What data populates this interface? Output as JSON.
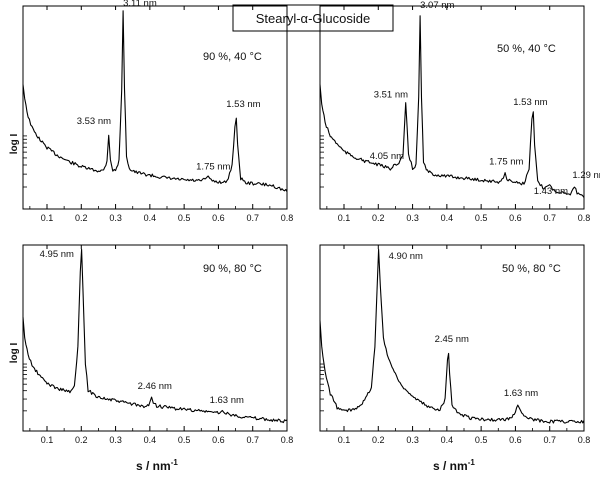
{
  "figure": {
    "title": "Stearyl-α-Glucoside",
    "xlabel_main": "s / nm",
    "xlabel_exp": "-1",
    "ylabel": "log I"
  },
  "chart_data": [
    {
      "type": "line",
      "panel": "top-left",
      "condition": "90 %, 40 °C",
      "xlabel": "",
      "ylabel": "log I",
      "xlim": [
        0.03,
        0.8
      ],
      "xticks": [
        0.1,
        0.2,
        0.3,
        0.4,
        0.5,
        0.6,
        0.7,
        0.8
      ],
      "y_scale": "log, unlabeled (relative intensity 0–1)",
      "ylim": [
        0,
        1
      ],
      "series": [
        {
          "x": [
            0.03,
            0.035,
            0.045,
            0.06,
            0.08,
            0.1,
            0.13,
            0.16,
            0.2,
            0.24,
            0.265,
            0.275,
            0.28,
            0.285,
            0.292,
            0.3,
            0.31,
            0.318,
            0.322,
            0.326,
            0.332,
            0.34,
            0.36,
            0.4,
            0.45,
            0.5,
            0.55,
            0.565,
            0.57,
            0.575,
            0.6,
            0.625,
            0.64,
            0.648,
            0.652,
            0.656,
            0.665,
            0.68,
            0.72,
            0.76,
            0.8
          ],
          "y": [
            0.62,
            0.55,
            0.45,
            0.38,
            0.33,
            0.29,
            0.25,
            0.22,
            0.19,
            0.17,
            0.17,
            0.22,
            0.36,
            0.23,
            0.17,
            0.17,
            0.22,
            0.6,
            1.0,
            0.6,
            0.25,
            0.18,
            0.16,
            0.145,
            0.13,
            0.12,
            0.115,
            0.13,
            0.145,
            0.12,
            0.11,
            0.11,
            0.2,
            0.4,
            0.44,
            0.3,
            0.13,
            0.105,
            0.1,
            0.09,
            0.06
          ]
        }
      ],
      "annotations": [
        {
          "text": "3.53 nm",
          "x": 0.28,
          "y": 0.36
        },
        {
          "text": "3.11 nm",
          "x": 0.322,
          "y": 1.0
        },
        {
          "text": "1.75 nm",
          "x": 0.57,
          "y": 0.145
        },
        {
          "text": "1.53 nm",
          "x": 0.652,
          "y": 0.44
        }
      ]
    },
    {
      "type": "line",
      "panel": "top-right",
      "condition": "50 %, 40 °C",
      "xlabel": "",
      "ylabel": "",
      "xlim": [
        0.03,
        0.8
      ],
      "xticks": [
        0.1,
        0.2,
        0.3,
        0.4,
        0.5,
        0.6,
        0.7,
        0.8
      ],
      "y_scale": "log, unlabeled (relative intensity 0–1)",
      "ylim": [
        0,
        1
      ],
      "series": [
        {
          "x": [
            0.03,
            0.035,
            0.045,
            0.06,
            0.08,
            0.1,
            0.13,
            0.16,
            0.2,
            0.235,
            0.245,
            0.26,
            0.272,
            0.28,
            0.288,
            0.3,
            0.31,
            0.318,
            0.322,
            0.326,
            0.332,
            0.34,
            0.36,
            0.4,
            0.45,
            0.5,
            0.55,
            0.565,
            0.57,
            0.575,
            0.6,
            0.625,
            0.64,
            0.648,
            0.652,
            0.656,
            0.665,
            0.68,
            0.695,
            0.7,
            0.705,
            0.72,
            0.76,
            0.768,
            0.772,
            0.78,
            0.8
          ],
          "y": [
            0.62,
            0.52,
            0.42,
            0.35,
            0.31,
            0.27,
            0.24,
            0.22,
            0.2,
            0.18,
            0.2,
            0.2,
            0.25,
            0.52,
            0.26,
            0.18,
            0.2,
            0.55,
            0.98,
            0.55,
            0.22,
            0.17,
            0.15,
            0.14,
            0.13,
            0.12,
            0.11,
            0.13,
            0.16,
            0.12,
            0.11,
            0.1,
            0.18,
            0.44,
            0.47,
            0.3,
            0.11,
            0.08,
            0.085,
            0.1,
            0.08,
            0.06,
            0.05,
            0.07,
            0.09,
            0.05,
            0.03
          ]
        }
      ],
      "annotations": [
        {
          "text": "4.05 nm",
          "x": 0.245,
          "y": 0.2
        },
        {
          "text": "3.51 nm",
          "x": 0.28,
          "y": 0.52
        },
        {
          "text": "3.07 nm",
          "x": 0.322,
          "y": 0.98
        },
        {
          "text": "1.75 nm",
          "x": 0.57,
          "y": 0.16
        },
        {
          "text": "1.53 nm",
          "x": 0.652,
          "y": 0.47
        },
        {
          "text": "1.43 nm",
          "x": 0.7,
          "y": 0.1
        },
        {
          "text": "1.29 nm",
          "x": 0.772,
          "y": 0.09
        }
      ]
    },
    {
      "type": "line",
      "panel": "bottom-left",
      "condition": "90 %, 80 °C",
      "xlabel": "s / nm-1",
      "ylabel": "log I",
      "xlim": [
        0.03,
        0.8
      ],
      "xticks": [
        0.1,
        0.2,
        0.3,
        0.4,
        0.5,
        0.6,
        0.7,
        0.8
      ],
      "y_scale": "log, unlabeled (relative intensity 0–1)",
      "ylim": [
        0,
        1
      ],
      "series": [
        {
          "x": [
            0.03,
            0.035,
            0.045,
            0.06,
            0.08,
            0.1,
            0.13,
            0.15,
            0.17,
            0.18,
            0.19,
            0.197,
            0.201,
            0.205,
            0.212,
            0.22,
            0.24,
            0.27,
            0.3,
            0.35,
            0.39,
            0.4,
            0.405,
            0.41,
            0.42,
            0.45,
            0.5,
            0.55,
            0.6,
            0.615,
            0.63,
            0.7,
            0.75,
            0.8
          ],
          "y": [
            0.62,
            0.5,
            0.4,
            0.33,
            0.28,
            0.24,
            0.21,
            0.2,
            0.19,
            0.22,
            0.45,
            0.88,
            1.0,
            0.78,
            0.35,
            0.2,
            0.17,
            0.15,
            0.14,
            0.12,
            0.1,
            0.13,
            0.16,
            0.13,
            0.11,
            0.1,
            0.09,
            0.08,
            0.07,
            0.08,
            0.06,
            0.04,
            0.03,
            0.02
          ]
        }
      ],
      "annotations": [
        {
          "text": "4.95 nm",
          "x": 0.201,
          "y": 1.0
        },
        {
          "text": "2.46 nm",
          "x": 0.405,
          "y": 0.16
        },
        {
          "text": "1.63 nm",
          "x": 0.615,
          "y": 0.08
        }
      ]
    },
    {
      "type": "line",
      "panel": "bottom-right",
      "condition": "50 %, 80 °C",
      "xlabel": "s / nm-1",
      "ylabel": "",
      "xlim": [
        0.03,
        0.8
      ],
      "xticks": [
        0.1,
        0.2,
        0.3,
        0.4,
        0.5,
        0.6,
        0.7,
        0.8
      ],
      "y_scale": "log, unlabeled (relative intensity 0–1)",
      "ylim": [
        0,
        1
      ],
      "series": [
        {
          "x": [
            0.03,
            0.035,
            0.045,
            0.06,
            0.08,
            0.1,
            0.13,
            0.16,
            0.18,
            0.19,
            0.197,
            0.201,
            0.206,
            0.215,
            0.23,
            0.26,
            0.3,
            0.35,
            0.38,
            0.395,
            0.402,
            0.405,
            0.408,
            0.415,
            0.43,
            0.47,
            0.52,
            0.56,
            0.59,
            0.6,
            0.607,
            0.612,
            0.625,
            0.65,
            0.7,
            0.75,
            0.8
          ],
          "y": [
            0.6,
            0.45,
            0.3,
            0.18,
            0.1,
            0.08,
            0.09,
            0.14,
            0.22,
            0.45,
            0.82,
            1.0,
            0.8,
            0.5,
            0.38,
            0.25,
            0.16,
            0.1,
            0.09,
            0.15,
            0.38,
            0.42,
            0.3,
            0.12,
            0.07,
            0.04,
            0.03,
            0.03,
            0.04,
            0.08,
            0.12,
            0.1,
            0.05,
            0.03,
            0.02,
            0.02,
            0.02
          ]
        }
      ],
      "annotations": [
        {
          "text": "4.90 nm",
          "x": 0.201,
          "y": 1.0
        },
        {
          "text": "2.45 nm",
          "x": 0.405,
          "y": 0.42
        },
        {
          "text": "1.63 nm",
          "x": 0.607,
          "y": 0.12
        }
      ]
    }
  ]
}
